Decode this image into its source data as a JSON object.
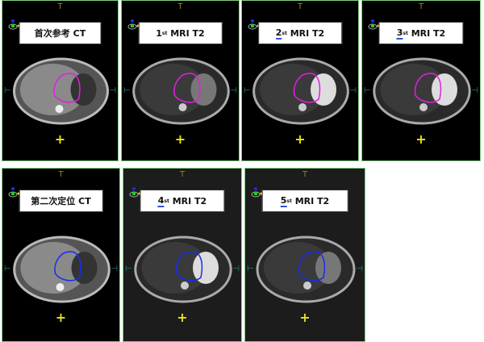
{
  "panels": [
    {
      "id": "ct-first",
      "label": "首次参考 CT",
      "num": "",
      "sup": "",
      "rest": "",
      "kind": "ct",
      "contour": "#e020e0",
      "underline": false
    },
    {
      "id": "mri-1",
      "label": "",
      "num": "1",
      "sup": "st",
      "rest": " MRI T2",
      "kind": "mri",
      "contour": "#e020e0",
      "underline": false
    },
    {
      "id": "mri-2",
      "label": "",
      "num": "2",
      "sup": "st",
      "rest": " MRI T2",
      "kind": "mri",
      "contour": "#e020e0",
      "underline": true
    },
    {
      "id": "mri-3",
      "label": "",
      "num": "3",
      "sup": "st",
      "rest": " MRI T2",
      "kind": "mri",
      "contour": "#e020e0",
      "underline": true
    },
    {
      "id": "ct-second",
      "label": "第二次定位 CT",
      "num": "",
      "sup": "",
      "rest": "",
      "kind": "ct",
      "contour": "#1a2cf0",
      "underline": false
    },
    {
      "id": "mri-4",
      "label": "",
      "num": "4",
      "sup": "st",
      "rest": " MRI T2",
      "kind": "mri",
      "contour": "#1a2cf0",
      "underline": true
    },
    {
      "id": "mri-5",
      "label": "",
      "num": "5",
      "sup": "st",
      "rest": " MRI T2",
      "kind": "mri",
      "contour": "#1a2cf0",
      "underline": true
    }
  ],
  "markers": {
    "top": "T",
    "left": "⊢",
    "right": "⊣",
    "center": "+"
  },
  "colors": {
    "border": "#7fd07f",
    "marker_yellow": "#e8e020",
    "side_teal": "#2a8a8a"
  }
}
